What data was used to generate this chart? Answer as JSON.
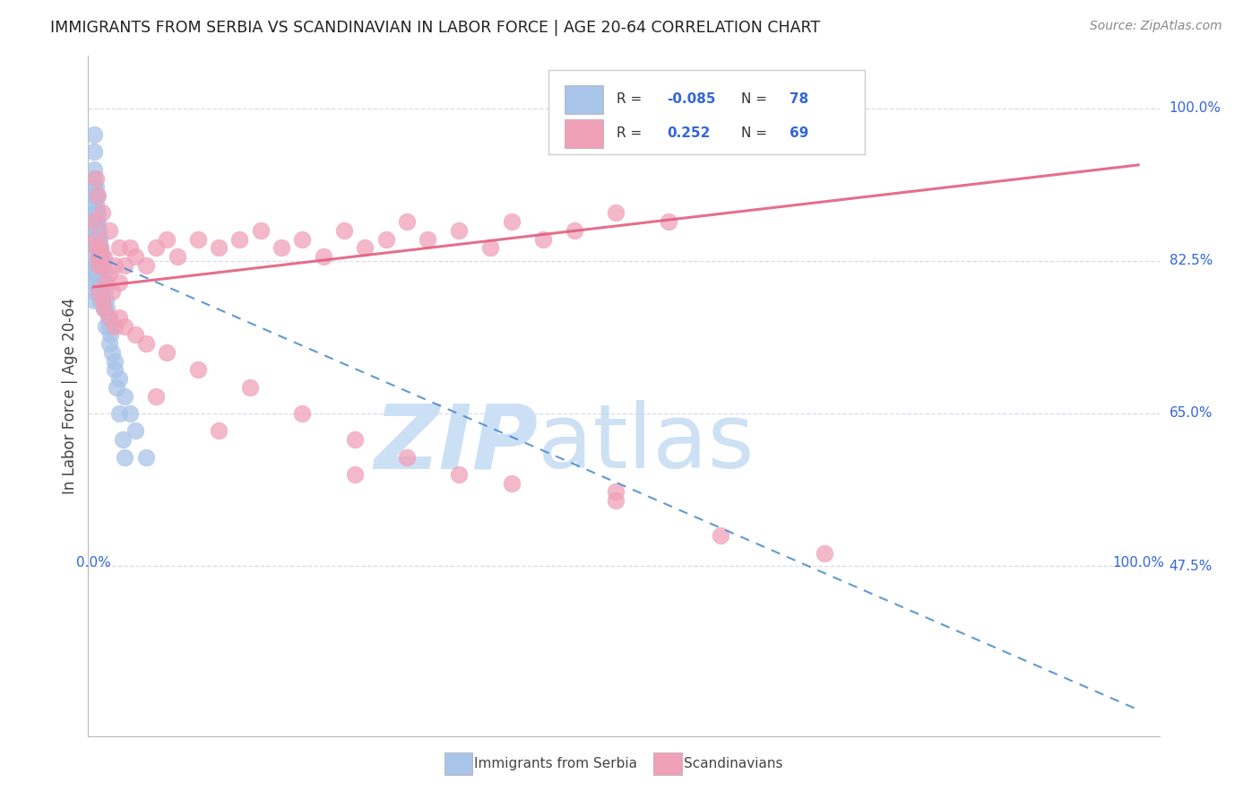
{
  "title": "IMMIGRANTS FROM SERBIA VS SCANDINAVIAN IN LABOR FORCE | AGE 20-64 CORRELATION CHART",
  "source": "Source: ZipAtlas.com",
  "ylabel": "In Labor Force | Age 20-64",
  "right_ytick_labels": [
    "100.0%",
    "82.5%",
    "65.0%",
    "47.5%"
  ],
  "right_ytick_vals": [
    1.0,
    0.825,
    0.65,
    0.475
  ],
  "xlim": [
    -0.005,
    1.02
  ],
  "ylim": [
    0.28,
    1.06
  ],
  "serbia_color": "#a8c4e8",
  "scandi_color": "#f0a0b8",
  "serbia_line_color": "#4488cc",
  "scandi_line_color": "#e06080",
  "background_color": "#ffffff",
  "grid_color": "#d8d8e8",
  "serbia_x": [
    0.001,
    0.001,
    0.001,
    0.001,
    0.001,
    0.001,
    0.001,
    0.001,
    0.001,
    0.001,
    0.002,
    0.002,
    0.002,
    0.002,
    0.002,
    0.002,
    0.002,
    0.002,
    0.003,
    0.003,
    0.003,
    0.003,
    0.003,
    0.003,
    0.004,
    0.004,
    0.004,
    0.004,
    0.004,
    0.005,
    0.005,
    0.005,
    0.005,
    0.006,
    0.006,
    0.006,
    0.007,
    0.007,
    0.008,
    0.008,
    0.009,
    0.01,
    0.01,
    0.011,
    0.012,
    0.013,
    0.014,
    0.015,
    0.016,
    0.018,
    0.02,
    0.022,
    0.025,
    0.028,
    0.03,
    0.001,
    0.001,
    0.001,
    0.001,
    0.001,
    0.002,
    0.002,
    0.002,
    0.003,
    0.003,
    0.004,
    0.005,
    0.006,
    0.01,
    0.012,
    0.015,
    0.02,
    0.025,
    0.03,
    0.035,
    0.04,
    0.05
  ],
  "serbia_y": [
    0.97,
    0.95,
    0.93,
    0.92,
    0.91,
    0.9,
    0.89,
    0.88,
    0.87,
    0.86,
    0.91,
    0.9,
    0.89,
    0.88,
    0.87,
    0.86,
    0.85,
    0.84,
    0.9,
    0.88,
    0.87,
    0.86,
    0.85,
    0.84,
    0.88,
    0.87,
    0.86,
    0.85,
    0.84,
    0.86,
    0.85,
    0.84,
    0.83,
    0.85,
    0.84,
    0.83,
    0.84,
    0.83,
    0.83,
    0.82,
    0.82,
    0.81,
    0.8,
    0.79,
    0.78,
    0.77,
    0.76,
    0.75,
    0.74,
    0.72,
    0.7,
    0.68,
    0.65,
    0.62,
    0.6,
    0.82,
    0.81,
    0.8,
    0.79,
    0.78,
    0.83,
    0.82,
    0.81,
    0.82,
    0.81,
    0.8,
    0.79,
    0.78,
    0.77,
    0.75,
    0.73,
    0.71,
    0.69,
    0.67,
    0.65,
    0.63,
    0.6
  ],
  "scandi_x": [
    0.001,
    0.002,
    0.003,
    0.004,
    0.005,
    0.006,
    0.007,
    0.008,
    0.01,
    0.012,
    0.015,
    0.018,
    0.02,
    0.025,
    0.03,
    0.035,
    0.04,
    0.05,
    0.06,
    0.07,
    0.08,
    0.1,
    0.12,
    0.14,
    0.16,
    0.18,
    0.2,
    0.22,
    0.24,
    0.26,
    0.28,
    0.3,
    0.32,
    0.35,
    0.38,
    0.4,
    0.43,
    0.46,
    0.5,
    0.55,
    0.005,
    0.008,
    0.01,
    0.015,
    0.02,
    0.025,
    0.03,
    0.04,
    0.05,
    0.07,
    0.1,
    0.15,
    0.2,
    0.25,
    0.3,
    0.35,
    0.4,
    0.5,
    0.6,
    0.7,
    0.002,
    0.004,
    0.008,
    0.015,
    0.025,
    0.06,
    0.12,
    0.25,
    0.5
  ],
  "scandi_y": [
    0.87,
    0.85,
    0.84,
    0.83,
    0.82,
    0.83,
    0.84,
    0.82,
    0.83,
    0.8,
    0.81,
    0.79,
    0.82,
    0.8,
    0.82,
    0.84,
    0.83,
    0.82,
    0.84,
    0.85,
    0.83,
    0.85,
    0.84,
    0.85,
    0.86,
    0.84,
    0.85,
    0.83,
    0.86,
    0.84,
    0.85,
    0.87,
    0.85,
    0.86,
    0.84,
    0.87,
    0.85,
    0.86,
    0.88,
    0.87,
    0.79,
    0.78,
    0.77,
    0.76,
    0.75,
    0.76,
    0.75,
    0.74,
    0.73,
    0.72,
    0.7,
    0.68,
    0.65,
    0.62,
    0.6,
    0.58,
    0.57,
    0.55,
    0.51,
    0.49,
    0.92,
    0.9,
    0.88,
    0.86,
    0.84,
    0.67,
    0.63,
    0.58,
    0.56
  ],
  "serbia_line_x0": 0.0,
  "serbia_line_y0": 0.832,
  "serbia_line_x1": 1.0,
  "serbia_line_y1": 0.31,
  "scandi_line_x0": 0.0,
  "scandi_line_y0": 0.795,
  "scandi_line_x1": 1.0,
  "scandi_line_y1": 0.935
}
